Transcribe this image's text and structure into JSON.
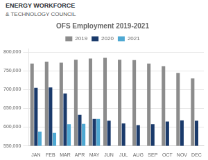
{
  "chart_data": {
    "type": "bar",
    "title": "OFS Employment 2019-2021",
    "annotations": [
      "ENERGY WORKFORCE",
      "& TECHNOLOGY COUNCIL"
    ],
    "categories": [
      "JAN",
      "FEB",
      "MAR",
      "APR",
      "MAY",
      "JUN",
      "JUL",
      "AUG",
      "SEP",
      "OCT",
      "NOV",
      "DEC"
    ],
    "series": [
      {
        "name": "2019",
        "color": "#8c8c8c",
        "values": [
          770000,
          775000,
          772000,
          780000,
          783000,
          785000,
          780000,
          779000,
          770000,
          763000,
          745000,
          730000
        ]
      },
      {
        "name": "2020",
        "color": "#1a3a6b",
        "values": [
          705000,
          706000,
          690000,
          633000,
          622000,
          617000,
          610000,
          605000,
          608000,
          615000,
          618000,
          617000
        ]
      },
      {
        "name": "2021",
        "color": "#4ea8d2",
        "values": [
          588000,
          585000,
          608000,
          609000,
          622000,
          null,
          null,
          null,
          null,
          null,
          null,
          null
        ]
      }
    ],
    "ylim": [
      550000,
      810000
    ],
    "yticks": [
      {
        "value": 550000,
        "label": "550,000"
      },
      {
        "value": 600000,
        "label": "600,000"
      },
      {
        "value": 650000,
        "label": "650,000"
      },
      {
        "value": 700000,
        "label": "700,000"
      },
      {
        "value": 750000,
        "label": "750,000"
      },
      {
        "value": 800000,
        "label": "800,000"
      }
    ],
    "grid": true,
    "legend": "top"
  }
}
